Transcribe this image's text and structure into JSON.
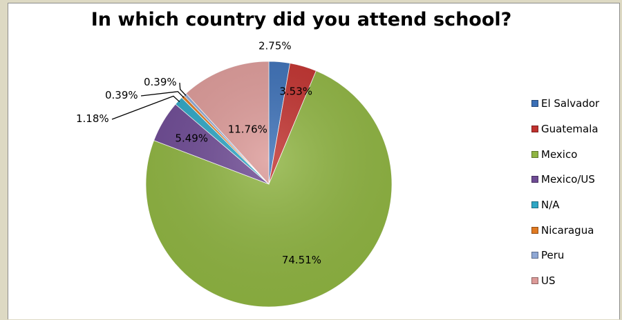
{
  "chart_data": {
    "type": "pie",
    "title": "In which country did you attend school?",
    "legend_position": "right",
    "series": [
      {
        "name": "El Salvador",
        "value": 2.75,
        "label": "2.75%",
        "color": "#3b6fb6"
      },
      {
        "name": "Guatemala",
        "value": 3.53,
        "label": "3.53%",
        "color": "#c0312e"
      },
      {
        "name": "Mexico",
        "value": 74.51,
        "label": "74.51%",
        "color": "#8fb442"
      },
      {
        "name": "Mexico/US",
        "value": 5.49,
        "label": "5.49%",
        "color": "#6e4b94"
      },
      {
        "name": "N/A",
        "value": 1.18,
        "label": "1.18%",
        "color": "#2ea6c4"
      },
      {
        "name": "Nicaragua",
        "value": 0.39,
        "label": "0.39%",
        "color": "#e07a22"
      },
      {
        "name": "Peru",
        "value": 0.39,
        "label": "0.39%",
        "color": "#8ea7d4"
      },
      {
        "name": "US",
        "value": 11.76,
        "label": "11.76%",
        "color": "#dc9a98"
      }
    ]
  }
}
